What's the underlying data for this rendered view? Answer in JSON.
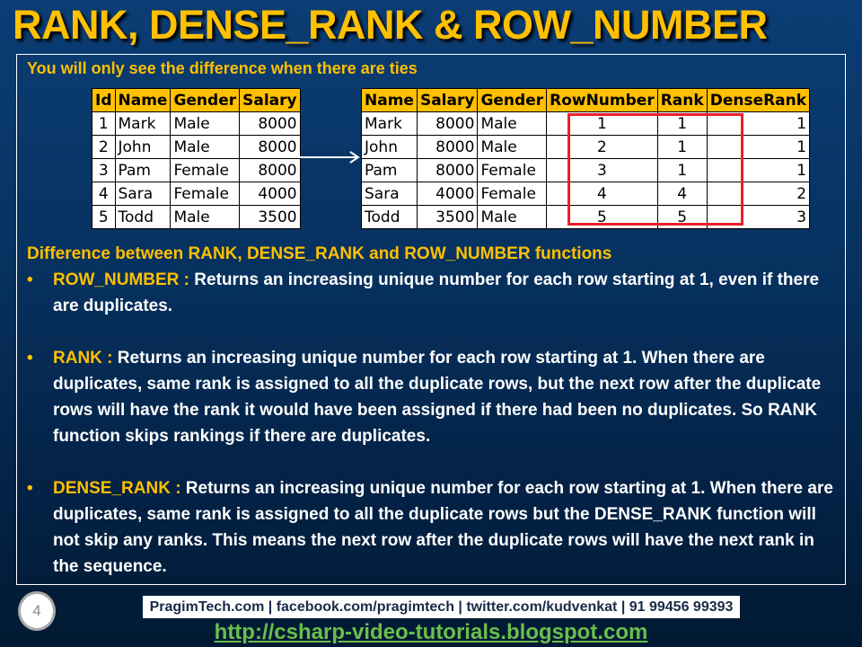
{
  "title": "RANK, DENSE_RANK & ROW_NUMBER",
  "subtitle": "You will only see the difference when there are ties",
  "left_table": {
    "headers": [
      "Id",
      "Name",
      "Gender",
      "Salary"
    ],
    "rows": [
      [
        "1",
        "Mark",
        "Male",
        "8000"
      ],
      [
        "2",
        "John",
        "Male",
        "8000"
      ],
      [
        "3",
        "Pam",
        "Female",
        "8000"
      ],
      [
        "4",
        "Sara",
        "Female",
        "4000"
      ],
      [
        "5",
        "Todd",
        "Male",
        "3500"
      ]
    ]
  },
  "right_table": {
    "headers": [
      "Name",
      "Salary",
      "Gender",
      "RowNumber",
      "Rank",
      "DenseRank"
    ],
    "rows": [
      [
        "Mark",
        "8000",
        "Male",
        "1",
        "1",
        "1"
      ],
      [
        "John",
        "8000",
        "Male",
        "2",
        "1",
        "1"
      ],
      [
        "Pam",
        "8000",
        "Female",
        "3",
        "1",
        "1"
      ],
      [
        "Sara",
        "4000",
        "Female",
        "4",
        "4",
        "2"
      ],
      [
        "Todd",
        "3500",
        "Male",
        "5",
        "5",
        "3"
      ]
    ]
  },
  "section_heading": "Difference between RANK, DENSE_RANK and ROW_NUMBER functions",
  "bullets": [
    {
      "term": "ROW_NUMBER :",
      "text": " Returns an increasing unique number for each row starting at 1, even if there are duplicates."
    },
    {
      "term": "RANK :",
      "text": " Returns an increasing unique number for each row starting at 1. When there are duplicates, same rank is assigned to all the duplicate rows, but the next row after the duplicate rows will have the rank it would have been assigned if there had been no duplicates. So RANK function skips rankings if there are duplicates."
    },
    {
      "term": "DENSE_RANK :",
      "text": " Returns an increasing unique number for each row starting at 1. When there are duplicates, same rank is assigned to all the duplicate rows but the DENSE_RANK function will not skip any ranks. This means the next row after the duplicate rows will have the next rank in the sequence."
    }
  ],
  "bullet_char": "•",
  "page_number": "4",
  "footer": "PragimTech.com | facebook.com/pragimtech | twitter.com/kudvenkat | 91 99456 99393",
  "link": "http://csharp-video-tutorials.blogspot.com",
  "colors": {
    "accent": "#ffc000",
    "highlight_box": "#e8202a",
    "link": "#6abf4b"
  }
}
